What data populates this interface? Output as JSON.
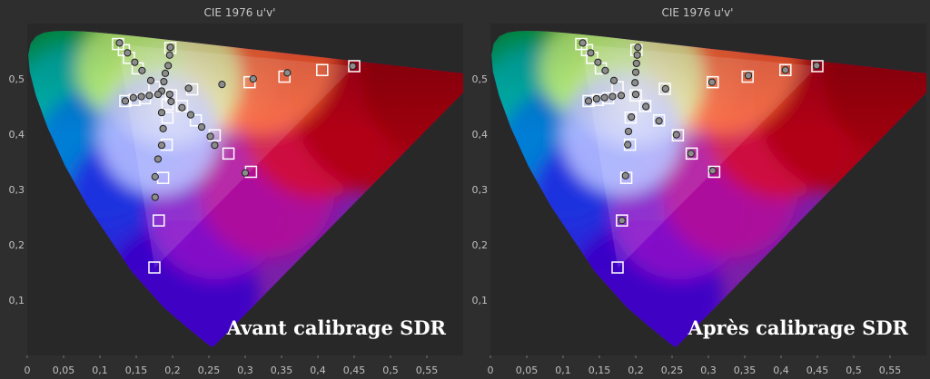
{
  "figure": {
    "background": "#2e2e2e",
    "plot_background": "#282828",
    "target_marker_color": "#ffffff",
    "measured_marker_color": "#8c8c8c"
  },
  "chart_data": [
    {
      "type": "scatter",
      "title": "CIE 1976 u'v'",
      "caption": "Avant calibrage SDR",
      "xlabel": "",
      "ylabel": "",
      "xlim": [
        0,
        0.6
      ],
      "ylim": [
        0,
        0.6
      ],
      "xticks": [
        "0",
        "0,05",
        "0,1",
        "0,15",
        "0,2",
        "0,25",
        "0,3",
        "0,35",
        "0,4",
        "0,45",
        "0,5",
        "0,55"
      ],
      "yticks": [
        "0,1",
        "0,2",
        "0,3",
        "0,4",
        "0,5"
      ],
      "grid": false,
      "gamut_triangle": [
        [
          0.4507,
          0.5229
        ],
        [
          0.125,
          0.5625
        ],
        [
          0.1754,
          0.1579
        ]
      ],
      "series": [
        {
          "marker": "square",
          "points": [
            [
              0.125,
              0.563
            ],
            [
              0.133,
              0.552
            ],
            [
              0.14,
              0.538
            ],
            [
              0.152,
              0.519
            ],
            [
              0.175,
              0.485
            ],
            [
              0.197,
              0.556
            ],
            [
              0.198,
              0.47
            ],
            [
              0.135,
              0.46
            ],
            [
              0.148,
              0.462
            ],
            [
              0.162,
              0.465
            ],
            [
              0.193,
              0.454
            ],
            [
              0.213,
              0.451
            ],
            [
              0.227,
              0.481
            ],
            [
              0.306,
              0.494
            ],
            [
              0.354,
              0.504
            ],
            [
              0.406,
              0.516
            ],
            [
              0.45,
              0.523
            ],
            [
              0.193,
              0.43
            ],
            [
              0.232,
              0.425
            ],
            [
              0.258,
              0.398
            ],
            [
              0.277,
              0.365
            ],
            [
              0.308,
              0.332
            ],
            [
              0.192,
              0.381
            ],
            [
              0.187,
              0.321
            ],
            [
              0.181,
              0.244
            ],
            [
              0.175,
              0.159
            ]
          ]
        },
        {
          "marker": "circle",
          "points": [
            [
              0.127,
              0.565
            ],
            [
              0.138,
              0.547
            ],
            [
              0.148,
              0.53
            ],
            [
              0.158,
              0.515
            ],
            [
              0.17,
              0.497
            ],
            [
              0.197,
              0.557
            ],
            [
              0.196,
              0.543
            ],
            [
              0.194,
              0.524
            ],
            [
              0.19,
              0.51
            ],
            [
              0.188,
              0.495
            ],
            [
              0.185,
              0.478
            ],
            [
              0.196,
              0.472
            ],
            [
              0.135,
              0.46
            ],
            [
              0.146,
              0.466
            ],
            [
              0.157,
              0.468
            ],
            [
              0.168,
              0.47
            ],
            [
              0.18,
              0.472
            ],
            [
              0.222,
              0.483
            ],
            [
              0.268,
              0.49
            ],
            [
              0.311,
              0.5
            ],
            [
              0.358,
              0.511
            ],
            [
              0.448,
              0.523
            ],
            [
              0.198,
              0.459
            ],
            [
              0.213,
              0.448
            ],
            [
              0.225,
              0.435
            ],
            [
              0.24,
              0.413
            ],
            [
              0.252,
              0.396
            ],
            [
              0.258,
              0.38
            ],
            [
              0.3,
              0.33
            ],
            [
              0.185,
              0.439
            ],
            [
              0.187,
              0.41
            ],
            [
              0.185,
              0.38
            ],
            [
              0.18,
              0.355
            ],
            [
              0.176,
              0.323
            ],
            [
              0.176,
              0.286
            ]
          ]
        }
      ]
    },
    {
      "type": "scatter",
      "title": "CIE 1976 u'v'",
      "caption": "Après calibrage SDR",
      "xlabel": "",
      "ylabel": "",
      "xlim": [
        0,
        0.6
      ],
      "ylim": [
        0,
        0.6
      ],
      "xticks": [
        "0",
        "0,05",
        "0,1",
        "0,15",
        "0,2",
        "0,25",
        "0,3",
        "0,35",
        "0,4",
        "0,45",
        "0,5",
        "0,55"
      ],
      "yticks": [
        "0,1",
        "0,2",
        "0,3",
        "0,4",
        "0,5"
      ],
      "grid": false,
      "gamut_triangle": [
        [
          0.4507,
          0.5229
        ],
        [
          0.125,
          0.5625
        ],
        [
          0.1754,
          0.1579
        ]
      ],
      "series": [
        {
          "marker": "square",
          "points": [
            [
              0.125,
              0.563
            ],
            [
              0.133,
              0.552
            ],
            [
              0.14,
              0.538
            ],
            [
              0.152,
              0.519
            ],
            [
              0.175,
              0.485
            ],
            [
              0.201,
              0.552
            ],
            [
              0.2,
              0.47
            ],
            [
              0.135,
              0.46
            ],
            [
              0.148,
              0.462
            ],
            [
              0.162,
              0.465
            ],
            [
              0.193,
              0.43
            ],
            [
              0.213,
              0.451
            ],
            [
              0.24,
              0.482
            ],
            [
              0.306,
              0.494
            ],
            [
              0.354,
              0.504
            ],
            [
              0.406,
              0.516
            ],
            [
              0.45,
              0.523
            ],
            [
              0.232,
              0.425
            ],
            [
              0.258,
              0.398
            ],
            [
              0.277,
              0.365
            ],
            [
              0.308,
              0.332
            ],
            [
              0.192,
              0.381
            ],
            [
              0.187,
              0.321
            ],
            [
              0.181,
              0.244
            ],
            [
              0.175,
              0.159
            ]
          ]
        },
        {
          "marker": "circle",
          "points": [
            [
              0.127,
              0.565
            ],
            [
              0.138,
              0.547
            ],
            [
              0.148,
              0.53
            ],
            [
              0.158,
              0.515
            ],
            [
              0.17,
              0.497
            ],
            [
              0.203,
              0.557
            ],
            [
              0.202,
              0.543
            ],
            [
              0.201,
              0.528
            ],
            [
              0.2,
              0.512
            ],
            [
              0.199,
              0.493
            ],
            [
              0.2,
              0.472
            ],
            [
              0.135,
              0.46
            ],
            [
              0.146,
              0.464
            ],
            [
              0.157,
              0.466
            ],
            [
              0.168,
              0.468
            ],
            [
              0.18,
              0.47
            ],
            [
              0.241,
              0.482
            ],
            [
              0.305,
              0.494
            ],
            [
              0.355,
              0.506
            ],
            [
              0.406,
              0.516
            ],
            [
              0.449,
              0.524
            ],
            [
              0.214,
              0.45
            ],
            [
              0.232,
              0.424
            ],
            [
              0.256,
              0.399
            ],
            [
              0.276,
              0.365
            ],
            [
              0.306,
              0.334
            ],
            [
              0.194,
              0.431
            ],
            [
              0.19,
              0.405
            ],
            [
              0.189,
              0.381
            ],
            [
              0.186,
              0.325
            ],
            [
              0.181,
              0.244
            ]
          ]
        }
      ]
    }
  ]
}
